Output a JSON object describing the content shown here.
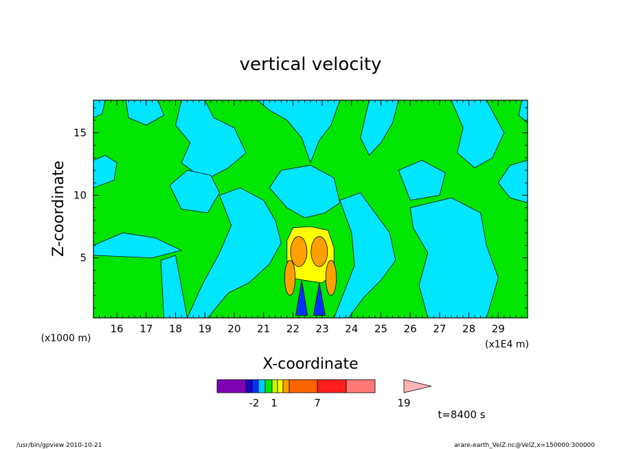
{
  "chart_data": {
    "type": "contour",
    "title": "vertical velocity",
    "xlabel": "X-coordinate",
    "ylabel": "Z-coordinate",
    "x_unit": "(x1E4 m)",
    "y_unit": "(x1000 m)",
    "xlim": [
      15.2,
      30.0
    ],
    "ylim": [
      0.2,
      17.6
    ],
    "x_ticks": [
      "16",
      "17",
      "18",
      "19",
      "20",
      "21",
      "22",
      "23",
      "24",
      "25",
      "26",
      "27",
      "28",
      "29"
    ],
    "x_tick_values": [
      16,
      17,
      18,
      19,
      20,
      21,
      22,
      23,
      24,
      25,
      26,
      27,
      28,
      29
    ],
    "y_ticks": [
      "5",
      "10",
      "15"
    ],
    "y_tick_values": [
      5,
      10,
      15
    ],
    "colorbar": {
      "colors": [
        "#7d00b4",
        "#1e00c8",
        "#0032ff",
        "#00c8ff",
        "#00e600",
        "#c8ff00",
        "#ffff00",
        "#ffa000",
        "#ff6400",
        "#ff1e1e",
        "#ff7878",
        "#ffb4b4"
      ],
      "labels": [
        "-2",
        "1",
        "7",
        "19"
      ]
    },
    "time_label": "t=8400 s",
    "regions": {
      "background": "#00e600",
      "light_blue": "#00e6ff",
      "yellow": "#ffff00",
      "orange": "#ffa000",
      "blue": "#0032ff"
    }
  },
  "footer": {
    "left": "/usr/bin/gpview  2010-10-21",
    "right": "arare-earth_VelZ.nc@VelZ,x=150000:300000"
  }
}
